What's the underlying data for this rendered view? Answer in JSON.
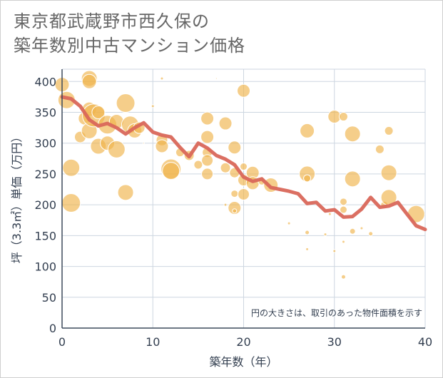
{
  "title_lines": [
    "東京都武蔵野市西久保の",
    "築年数別中古マンション価格"
  ],
  "chart_data": {
    "type": "scatter",
    "title": "東京都武蔵野市西久保の築年数別中古マンション価格",
    "xlabel": "築年数（年）",
    "ylabel": "坪（3.3㎡）単価（万円）",
    "xlim": [
      0,
      40
    ],
    "ylim": [
      0,
      420
    ],
    "xticks": [
      0,
      10,
      20,
      30,
      40
    ],
    "yticks": [
      0,
      50,
      100,
      150,
      200,
      250,
      300,
      350,
      400
    ],
    "grid": true,
    "annotation": "円の大きさは、取引のあった物件面積を示す",
    "colors": {
      "bubble": "#f0b44c",
      "line": "#d9675a",
      "grid": "#cdd6e0",
      "axis": "#3d4a5c"
    },
    "series": [
      {
        "kind": "bubble",
        "points": [
          [
            0,
            395,
            10
          ],
          [
            0.5,
            370,
            12
          ],
          [
            1,
            260,
            12
          ],
          [
            1,
            203,
            13
          ],
          [
            2,
            310,
            8
          ],
          [
            2.5,
            340,
            9
          ],
          [
            3,
            405,
            11
          ],
          [
            3,
            400,
            10
          ],
          [
            3,
            355,
            10
          ],
          [
            3,
            320,
            11
          ],
          [
            3.5,
            345,
            16
          ],
          [
            4,
            350,
            9
          ],
          [
            4,
            295,
            11
          ],
          [
            5,
            330,
            13
          ],
          [
            5,
            300,
            10
          ],
          [
            6,
            335,
            10
          ],
          [
            6,
            290,
            12
          ],
          [
            7,
            365,
            13
          ],
          [
            7,
            220,
            11
          ],
          [
            7.5,
            330,
            12
          ],
          [
            8,
            320,
            10
          ],
          [
            8.5,
            325,
            8
          ],
          [
            9,
            300,
            1
          ],
          [
            10,
            360,
            2
          ],
          [
            11,
            405,
            2
          ],
          [
            11,
            305,
            8
          ],
          [
            11,
            295,
            9
          ],
          [
            12,
            258,
            14
          ],
          [
            12,
            255,
            12
          ],
          [
            13,
            285,
            6
          ],
          [
            14,
            280,
            7
          ],
          [
            15,
            265,
            6
          ],
          [
            16,
            340,
            9
          ],
          [
            16,
            310,
            9
          ],
          [
            16,
            285,
            7
          ],
          [
            16,
            272,
            8
          ],
          [
            16,
            250,
            8
          ],
          [
            17,
            405,
            1
          ],
          [
            18,
            332,
            9
          ],
          [
            18,
            260,
            7
          ],
          [
            18,
            200,
            2
          ],
          [
            19,
            293,
            9
          ],
          [
            19,
            252,
            7
          ],
          [
            19,
            218,
            5
          ],
          [
            19,
            195,
            9
          ],
          [
            19,
            190,
            3
          ],
          [
            20,
            385,
            9
          ],
          [
            20,
            262,
            5
          ],
          [
            20,
            240,
            8
          ],
          [
            20,
            217,
            8
          ],
          [
            21,
            252,
            9
          ],
          [
            21,
            235,
            9
          ],
          [
            22,
            238,
            5
          ],
          [
            23,
            232,
            10
          ],
          [
            25,
            170,
            2
          ],
          [
            27,
            320,
            10
          ],
          [
            27,
            250,
            11
          ],
          [
            27,
            243,
            5
          ],
          [
            27,
            155,
            3
          ],
          [
            27,
            128,
            2
          ],
          [
            29,
            152,
            2
          ],
          [
            29.5,
            185,
            2
          ],
          [
            30,
            343,
            9
          ],
          [
            30,
            125,
            2
          ],
          [
            31,
            343,
            6
          ],
          [
            31,
            205,
            5
          ],
          [
            31,
            192,
            5
          ],
          [
            31,
            140,
            2
          ],
          [
            31,
            83,
            3
          ],
          [
            32,
            315,
            11
          ],
          [
            32,
            242,
            11
          ],
          [
            32,
            157,
            4
          ],
          [
            33,
            162,
            2
          ],
          [
            34,
            153,
            3
          ],
          [
            35,
            290,
            6
          ],
          [
            35.5,
            200,
            5
          ],
          [
            36,
            320,
            6
          ],
          [
            36,
            252,
            11
          ],
          [
            36,
            212,
            11
          ],
          [
            39,
            185,
            12
          ]
        ]
      },
      {
        "kind": "line",
        "x": [
          0,
          1,
          2,
          3,
          4,
          5,
          6,
          7,
          8,
          9,
          10,
          11,
          12,
          13,
          14,
          15,
          16,
          17,
          18,
          19,
          20,
          21,
          22,
          23,
          24,
          25,
          26,
          27,
          28,
          29,
          30,
          31,
          32,
          33,
          34,
          35,
          36,
          37,
          38,
          39,
          40
        ],
        "y": [
          375,
          372,
          360,
          338,
          328,
          332,
          325,
          315,
          325,
          333,
          318,
          313,
          310,
          293,
          278,
          300,
          292,
          280,
          274,
          265,
          245,
          238,
          242,
          228,
          225,
          222,
          218,
          202,
          204,
          190,
          192,
          180,
          181,
          193,
          212,
          196,
          198,
          204,
          185,
          166,
          160
        ]
      }
    ]
  }
}
